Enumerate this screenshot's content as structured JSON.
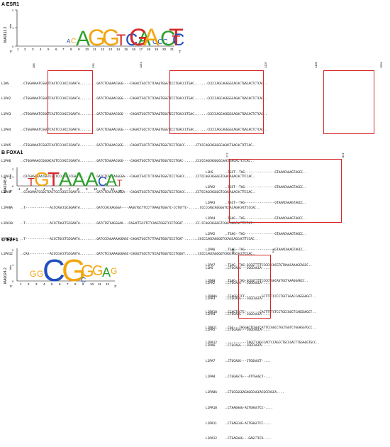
{
  "panels": [
    {
      "label": "A ESR1",
      "motif_id": "MA0112.2",
      "bits_label": "bits",
      "axis_start": "5'",
      "axis_end": "3'",
      "axis_numbers": [
        "1",
        "2",
        "3",
        "4",
        "5",
        "6",
        "7",
        "8",
        "9",
        "10",
        "11",
        "12",
        "13",
        "14",
        "15",
        "16",
        "17",
        "18",
        "19",
        "20",
        "21"
      ],
      "logo_letters": [
        "A",
        "G",
        "G",
        "T",
        "C",
        "A",
        "C",
        "C",
        "C",
        "T",
        "G",
        "A",
        "C",
        "C",
        "T"
      ],
      "positions": [
        "286",
        "295",
        "1154",
        "1207",
        "1495",
        "1524"
      ],
      "rows": [
        {
          "name": "L1HS",
          "seq": "..CTGGAAAATCGGGTCACTCCCACCCGAATA.........GATCTCAGAACGGG----CAGACTGCCTCTCAAGTGGGTCCCTGACCCTGAC.......CCCCCAGCAGGGGCACACTGACACTCTCAC.."
        },
        {
          "name": "L1PA2",
          "seq": "..CTGGAAAATCGGGTCACTCCCACCCGAATA.........GATCTCAGAACGGG----CAGACTGCCTCTCAAGTGGGTCCCTGACCCTGAC.......CCCCCAGCAGGGGCAGACTGACACTCTCAC.."
        },
        {
          "name": "L1PA3",
          "seq": "..CTGGAAAATCGGGTCACTCCCACCCGAATA.........GATCTCAGAACGGG----CAGACTGCCTCTCAAGTGGGTCCCTGACCCTGAC.......CCCCCAGCAGGGGCAGACTGACACTCTCAC.."
        },
        {
          "name": "L1PA4",
          "seq": "..CTGGAAAATCGGGTCACTCCCACCCGAATA.........GATCTCAGAACGGG----CAGACTGCCTCTCAAGTGGGTCCCTGACCCTGAC.......CCCCCAGCAGGGGCAGACTGACACTCTCAC.."
        },
        {
          "name": "L1PA5",
          "seq": "..CTGGAAAATCGGGTCACTCCCACCCGAATA.........GATCTCAGAACGGG----CAGACTGCCTCTCAAGTGGGTCCCTGACC......CTCCCAGCAGGGGCAGACTGACACTCTCAC.."
        },
        {
          "name": "L1PA6",
          "seq": "..CTGGAAAACCGGGACACTCCCACCCGAATA.........GATCTCAGAACGGG----CAGACTGCCTCTCAAGTGGGTCCCTGAC-......CCCCCAGCAGGGGCAACTGACACTCTCAC.."
        },
        {
          "name": "L1PA7",
          "seq": "..CATGAGGAAATGGTCACTCCCGGCCCGAATA........GATCTCACTAAGGGA---CAGACTGCCTCTCAAGTGGGTCCCTGACC......CCTCCAGCAGGGGTCGACAGACACTTCCAC.."
        },
        {
          "name": "L1PA8",
          "seq": "..CCAGAAATCGGGTCACTCCCGGCCCGAATA.........GATCTCACTAAGGGA---CAGACTGCCTCTCAAGTGGGTCCCTGACC......CCTCCAGCAGGGGTCGACAGACACTTCCAC.."
        },
        {
          "name": "L1PA8A",
          "seq": "..T-------------ACCCAGCCGCGGAATA.........GATCCACAAGGGA----AAGGTGCTTCCTTAAAGTGGGTC-CCTGTTC-......CCCCCAGCAGGGGTCGACAGACACTCCCAC.."
        },
        {
          "name": "L1PA10",
          "seq": "..T-------------ACCCTAGCTGCGAATA.........GATCTGTAAGGGAA---CAGACTGCCTCTCAAGTGGGTCCCTGGAT.......CC-CCAGCAGGGGTCGACAGACACTTCTAT.."
        },
        {
          "name": "L1PA11",
          "seq": "..T-------------ACCCTGCCTGCGAATA.........GATCCCAAAAAAGGAGC-CAGACTGCCTCTTAAGTGGGTCCCTGAT-.......CCCCCAGCAGGGGTCCAGCAGCACTTCCAC.."
        },
        {
          "name": "L1PA12",
          "seq": "..CAA-----------ACCCCACCTGCGAATA.........GATCTCCAAAAGGGAGC-CAGGCTGCCTCTCCAGTGGGTCCCTGGAT.......CCCCCAGCAGGGGTCAGCAGCACCTCCAC.."
        }
      ]
    },
    {
      "label": "B FOXA1",
      "motif_id": "MA0148.4",
      "bits_label": "bits",
      "axis_start": "5'",
      "axis_end": "3'",
      "axis_numbers": [
        "1",
        "2",
        "3",
        "4",
        "5",
        "6",
        "7",
        "8",
        "9",
        "10",
        "11",
        "12"
      ],
      "logo_letters": [
        "T",
        "G",
        "T",
        "A",
        "A",
        "A",
        "C",
        "A",
        "T"
      ],
      "positions": [
        "777",
        "821"
      ],
      "rows": [
        {
          "name": "L1HS",
          "seq": "..TGCT--TAG----------------GTAAACAAAGTAGCC.."
        },
        {
          "name": "L1PA2",
          "seq": "..TGCT--TAG----------------GTAAACAAAGTAGCC.."
        },
        {
          "name": "L1PA3",
          "seq": "..TGCT--TAG----------------GTAAACAAAGTAGCC.."
        },
        {
          "name": "L1PA4",
          "seq": "..TGAG--TAG----------------GTAAACAAAGTAGCC.."
        },
        {
          "name": "L1PA5",
          "seq": "..TGAG--TAG----------------GTAAACAAAGTAGCC.."
        },
        {
          "name": "L1PA6",
          "seq": "..TGAG--TAG----------------GTAAACAAAGTAGCC.."
        },
        {
          "name": "L1PA7",
          "seq": "..TGAG--TAG-GCGGTTTTCCCCACACGTGTAAACAAAGCAGCC.."
        },
        {
          "name": "L1PA8",
          "seq": "..TGAG--TAG-GCGGTTTTCCCCTGACAGTGCTAAAGGAGCC.."
        },
        {
          "name": "L1PA8A",
          "seq": "..CCAGGCTCT---------GCTTTTCCCCTGCTGGACCAGGGAGCT.."
        },
        {
          "name": "L1PA10",
          "seq": "..CCAGTGCTC--------CACTTTTCTCCTGCCGGCTCAGGGAGCT.."
        },
        {
          "name": "L1PA11",
          "seq": "..CGG---TAGGACTCAGCCATTCCAGCCTGCTGGTCTGGAGGTGCC.."
        },
        {
          "name": "L1PA12",
          "seq": "..----------TAGCTCAGCCACTCCAGCCTGCCGACTTGGAGGTGCC.."
        }
      ]
    },
    {
      "label": "C E2F1",
      "motif_id": "MA0024.2",
      "bits_label": "bits",
      "axis_start": "5'",
      "axis_end": "3'",
      "axis_numbers": [
        "1",
        "2",
        "3",
        "4",
        "5",
        "6",
        "7",
        "8",
        "9",
        "10",
        "11",
        "12"
      ],
      "logo_letters": [
        "G",
        "G",
        "C",
        "G",
        "G",
        "G",
        "A",
        "G",
        "C"
      ],
      "positions": [
        "681",
        "705"
      ],
      "rows": [
        {
          "name": "L1HS",
          "seq": "..CTGCAGG---CGGCAGCA-...."
        },
        {
          "name": "L1PA2",
          "seq": "..CTGCAGG---CGGCAGCA-...."
        },
        {
          "name": "L1PA3",
          "seq": "..CTGCAGG---CGGCAGCA-...."
        },
        {
          "name": "L1PA4",
          "seq": "..CTGCAGG---CGGCAGCA-...."
        },
        {
          "name": "L1PA5",
          "seq": "..CTGCAGG---CGGCAGCA-...."
        },
        {
          "name": "L1PA6",
          "seq": "..CTGCAGG---CGGCAGCA-...."
        },
        {
          "name": "L1PA7",
          "seq": "..CTGCAGG---CTGGAGCT-...."
        },
        {
          "name": "L1PA8",
          "seq": "..CTGGAGTG---ATTGAGCT-...."
        },
        {
          "name": "L1PA8A",
          "seq": "..CTGCGGGGAGAGGCAGCACGCCAGCA...."
        },
        {
          "name": "L1PA10",
          "seq": "..CTAAGAAG-ACTGAGCTCC-...."
        },
        {
          "name": "L1PA11",
          "seq": "..CTGAGCAG-ACTGAGCTCC-...."
        },
        {
          "name": "L1PA12",
          "seq": "..CTGAGAAG---GAGCTCCA-...."
        }
      ]
    }
  ],
  "colors": {
    "box": "#d62728",
    "A": "#2ca02c",
    "C": "#1f4fbf",
    "G": "#f2a60d",
    "T": "#d62728"
  }
}
